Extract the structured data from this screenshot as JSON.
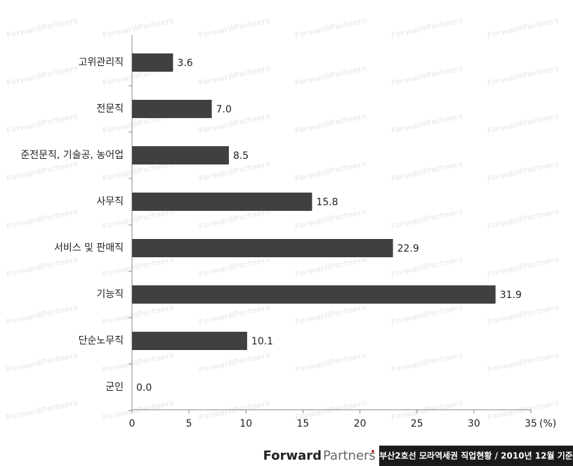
{
  "chart_data": {
    "type": "hbar",
    "categories": [
      "고위관리직",
      "전문직",
      "준전문직, 기술공, 농어업",
      "사무직",
      "서비스 및 판매직",
      "기능직",
      "단순노무직",
      "군인"
    ],
    "values": [
      3.6,
      7.0,
      8.5,
      15.8,
      22.9,
      31.9,
      10.1,
      0.0
    ],
    "value_labels": [
      "3.6",
      "7.0",
      "8.5",
      "15.8",
      "22.9",
      "31.9",
      "10.1",
      "0.0"
    ],
    "color": "#404040",
    "xlim": [
      0,
      35
    ],
    "xticks": [
      0,
      5,
      10,
      15,
      20,
      25,
      30,
      35
    ],
    "x_label": "(%)",
    "grid": false
  },
  "watermark": "ForwardPartners",
  "footer": {
    "logo_left": "Forward",
    "logo_right": "Partners",
    "caption": "부산2호선 모라역세권 직업현황 / 2010년 12월 기준"
  }
}
